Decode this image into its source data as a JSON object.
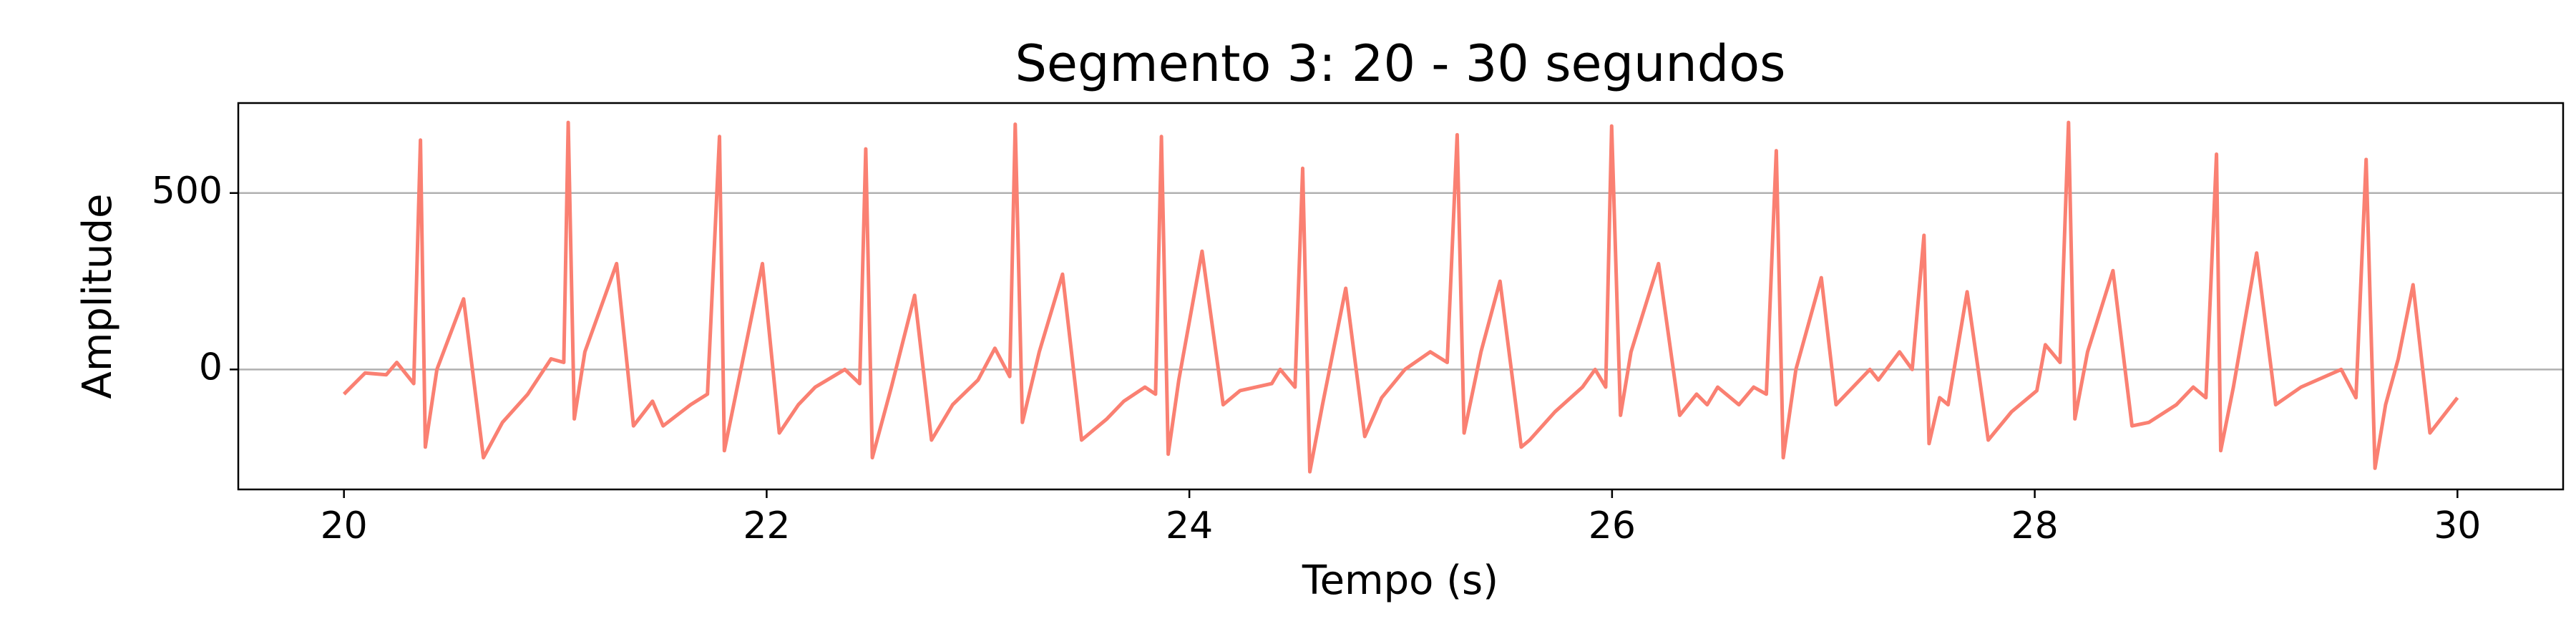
{
  "chart_data": {
    "type": "line",
    "title": "Segmento 3: 20 - 30 segundos",
    "xlabel": "Tempo (s)",
    "ylabel": "Amplitude",
    "color": "#fa8072",
    "grid": true,
    "xlim": [
      19.5,
      30.5
    ],
    "ylim": [
      -340,
      755
    ],
    "xticks": [
      20,
      22,
      24,
      26,
      28,
      30
    ],
    "yticks": [
      0,
      500
    ],
    "x": [
      20.0,
      20.1,
      20.2,
      20.25,
      20.33,
      20.362,
      20.385,
      20.44,
      20.566,
      20.66,
      20.75,
      20.87,
      20.98,
      21.04,
      21.061,
      21.09,
      21.14,
      21.29,
      21.37,
      21.46,
      21.51,
      21.64,
      21.72,
      21.777,
      21.8,
      21.98,
      22.06,
      22.15,
      22.23,
      22.37,
      22.44,
      22.469,
      22.5,
      22.59,
      22.7,
      22.78,
      22.88,
      23.0,
      23.08,
      23.15,
      23.176,
      23.21,
      23.29,
      23.4,
      23.49,
      23.61,
      23.69,
      23.79,
      23.84,
      23.868,
      23.9,
      23.95,
      24.06,
      24.16,
      24.24,
      24.39,
      24.43,
      24.5,
      24.536,
      24.57,
      24.63,
      24.74,
      24.83,
      24.91,
      25.02,
      25.14,
      25.22,
      25.267,
      25.3,
      25.38,
      25.47,
      25.57,
      25.61,
      25.73,
      25.86,
      25.92,
      25.97,
      25.998,
      26.04,
      26.09,
      26.22,
      26.32,
      26.4,
      26.45,
      26.5,
      26.6,
      26.67,
      26.73,
      26.777,
      26.81,
      26.87,
      26.99,
      27.06,
      27.22,
      27.26,
      27.36,
      27.42,
      27.476,
      27.5,
      27.55,
      27.59,
      27.68,
      27.78,
      27.89,
      28.01,
      28.05,
      28.12,
      28.16,
      28.19,
      28.25,
      28.37,
      28.46,
      28.54,
      28.67,
      28.75,
      28.81,
      28.86,
      28.88,
      28.94,
      29.05,
      29.14,
      29.26,
      29.45,
      29.52,
      29.568,
      29.61,
      29.66,
      29.72,
      29.79,
      29.87,
      30.0
    ],
    "values": [
      -70,
      -10,
      -15,
      20,
      -40,
      650,
      -220,
      0,
      200,
      -250,
      -150,
      -70,
      30,
      20,
      700,
      -140,
      50,
      300,
      -160,
      -90,
      -160,
      -100,
      -70,
      660,
      -230,
      300,
      -180,
      -100,
      -50,
      0,
      -40,
      625,
      -250,
      -50,
      210,
      -200,
      -100,
      -30,
      60,
      -20,
      695,
      -150,
      50,
      270,
      -200,
      -140,
      -90,
      -50,
      -70,
      660,
      -240,
      -30,
      335,
      -100,
      -60,
      -40,
      0,
      -50,
      570,
      -290,
      -100,
      230,
      -190,
      -80,
      0,
      50,
      20,
      665,
      -180,
      50,
      250,
      -220,
      -200,
      -120,
      -50,
      0,
      -50,
      690,
      -130,
      50,
      300,
      -130,
      -70,
      -100,
      -50,
      -100,
      -50,
      -70,
      620,
      -250,
      0,
      260,
      -100,
      0,
      -30,
      50,
      0,
      380,
      -210,
      -80,
      -100,
      220,
      -200,
      -120,
      -60,
      70,
      20,
      700,
      -140,
      50,
      280,
      -160,
      -150,
      -100,
      -50,
      -80,
      610,
      -230,
      -50,
      330,
      -100,
      -50,
      0,
      -80,
      595,
      -280,
      -100,
      30,
      240,
      -180,
      -80
    ]
  }
}
